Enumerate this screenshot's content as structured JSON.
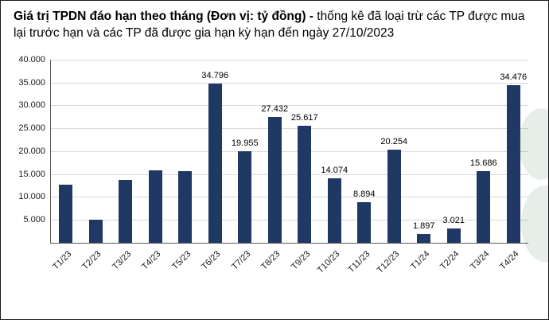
{
  "title": {
    "bold": "Giá trị TPDN đáo hạn theo tháng (Đơn vị: tỷ đồng) - ",
    "rest": "thống kê đã loại trừ các TP được mua lại trước hạn và các TP đã được gia hạn kỳ hạn đến ngày 27/10/2023"
  },
  "colors": {
    "bar": "#1f3864",
    "grid": "#d9d9d9",
    "axis": "#595959",
    "watermark_green": "#3a7d44"
  },
  "chart_data": {
    "type": "bar",
    "title": "Giá trị TPDN đáo hạn theo tháng (Đơn vị: tỷ đồng)",
    "xlabel": "",
    "ylabel": "",
    "ylim": [
      0,
      40000
    ],
    "grid": true,
    "legend": false,
    "categories": [
      "T1/23",
      "T2/23",
      "T3/23",
      "T4/23",
      "T5/23",
      "T6/23",
      "T7/23",
      "T8/23",
      "T9/23",
      "T10/23",
      "T11/23",
      "T12/23",
      "T1/24",
      "T2/24",
      "T3/24",
      "T4/24"
    ],
    "values": [
      12700,
      5000,
      13700,
      15800,
      15600,
      34796,
      19955,
      27432,
      25617,
      14074,
      8894,
      20254,
      1897,
      3021,
      15686,
      34476
    ],
    "bar_labels": [
      "",
      "",
      "",
      "",
      "",
      "34.796",
      "19.955",
      "27.432",
      "25.617",
      "14.074",
      "8.894",
      "20.254",
      "1.897",
      "3.021",
      "15.686",
      "34.476"
    ],
    "ytick_values": [
      5000,
      10000,
      15000,
      20000,
      25000,
      30000,
      35000,
      40000
    ],
    "ytick_labels": [
      "5.000",
      "10.000",
      "15.000",
      "20.000",
      "25.000",
      "30.000",
      "35.000",
      "40.000"
    ]
  }
}
